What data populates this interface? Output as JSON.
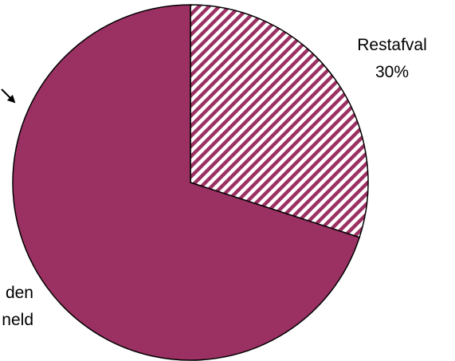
{
  "chart_data": {
    "type": "pie",
    "title": "",
    "slices": [
      {
        "label": "Restafval",
        "value_label": "30%",
        "value": 30,
        "color": "#9b3163",
        "fill_pattern": "diagonal-hatch"
      },
      {
        "label_fragments": [
          "den",
          "neld"
        ],
        "value": 70,
        "color": "#9b3163",
        "fill_pattern": "solid"
      }
    ],
    "start_angle_deg": 0,
    "direction": "clockwise",
    "hatch": {
      "background": "#ffffff",
      "line_color": "#9b3163"
    },
    "outline_color": "#000000",
    "has_leader_arrow": true,
    "legend": "none"
  }
}
